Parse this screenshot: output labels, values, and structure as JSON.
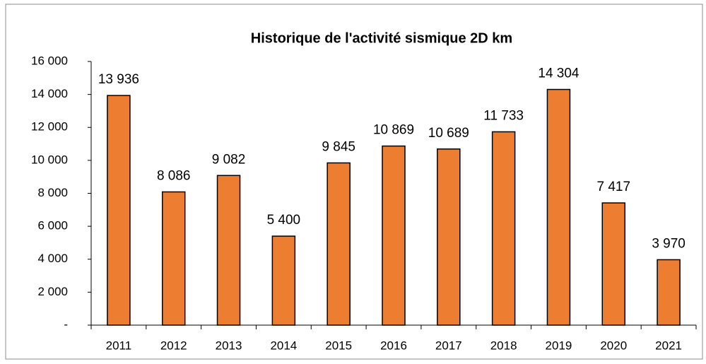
{
  "chart_data": {
    "type": "bar",
    "title": "Historique de l'activité sismique 2D km",
    "categories": [
      "2011",
      "2012",
      "2013",
      "2014",
      "2015",
      "2016",
      "2017",
      "2018",
      "2019",
      "2020",
      "2021"
    ],
    "values": [
      13936,
      8086,
      9082,
      5400,
      9845,
      10869,
      10689,
      11733,
      14304,
      7417,
      3970
    ],
    "value_labels": [
      "13 936",
      "8 086",
      "9 082",
      "5 400",
      "9 845",
      "10 869",
      "10 689",
      "11 733",
      "14 304",
      "7 417",
      "3 970"
    ],
    "color": "#ed7d31",
    "ylim": [
      0,
      16000
    ],
    "yticks": [
      {
        "value": 0,
        "label": "-"
      },
      {
        "value": 2000,
        "label": "2 000"
      },
      {
        "value": 4000,
        "label": "4 000"
      },
      {
        "value": 6000,
        "label": "6 000"
      },
      {
        "value": 8000,
        "label": "8 000"
      },
      {
        "value": 10000,
        "label": "10 000"
      },
      {
        "value": 12000,
        "label": "12 000"
      },
      {
        "value": 14000,
        "label": "14 000"
      },
      {
        "value": 16000,
        "label": "16 000"
      }
    ],
    "grid": false
  }
}
